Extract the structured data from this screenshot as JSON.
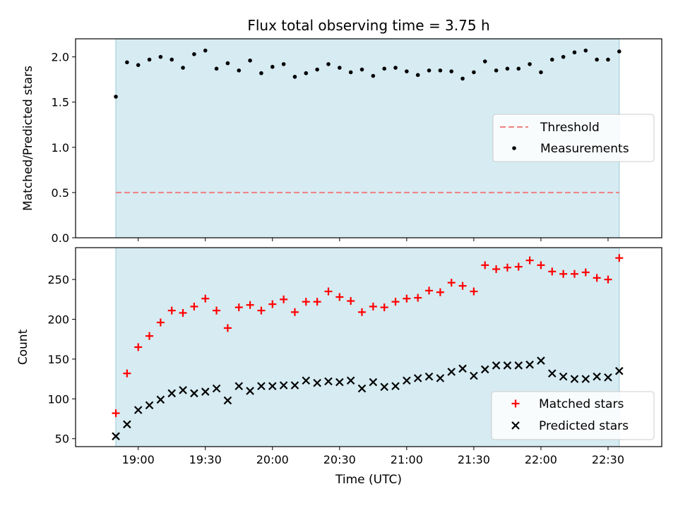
{
  "chart_data": [
    {
      "type": "scatter",
      "title": "Flux total observing time = 3.75 h",
      "xlabel": "",
      "ylabel": "Matched/Predicted stars",
      "ylim": [
        0.0,
        2.2
      ],
      "y_ticks": [
        "0.0",
        "0.5",
        "1.0",
        "1.5",
        "2.0"
      ],
      "x_ticks": [
        "19:00",
        "19:30",
        "20:00",
        "20:30",
        "21:00",
        "21:30",
        "22:00",
        "22:30"
      ],
      "shaded_span_minutes": [
        1130,
        1355
      ],
      "threshold": {
        "name": "Threshold",
        "value": 0.5,
        "color": "#f08080"
      },
      "measurements": {
        "name": "Measurements",
        "color": "#000000",
        "x_minutes": [
          1130,
          1135,
          1140,
          1145,
          1150,
          1155,
          1160,
          1165,
          1170,
          1175,
          1180,
          1185,
          1190,
          1195,
          1200,
          1205,
          1210,
          1215,
          1220,
          1225,
          1230,
          1235,
          1240,
          1245,
          1250,
          1255,
          1260,
          1265,
          1270,
          1275,
          1280,
          1285,
          1290,
          1295,
          1300,
          1305,
          1310,
          1315,
          1320,
          1325,
          1330,
          1335,
          1340,
          1345,
          1350,
          1355
        ],
        "values": [
          1.56,
          1.94,
          1.91,
          1.97,
          2.0,
          1.97,
          1.88,
          2.03,
          2.07,
          1.87,
          1.93,
          1.85,
          1.96,
          1.82,
          1.89,
          1.92,
          1.78,
          1.82,
          1.86,
          1.92,
          1.88,
          1.83,
          1.86,
          1.79,
          1.87,
          1.88,
          1.84,
          1.8,
          1.85,
          1.85,
          1.84,
          1.76,
          1.83,
          1.95,
          1.85,
          1.87,
          1.87,
          1.92,
          1.83,
          1.97,
          2.0,
          2.05,
          2.07,
          1.97,
          1.97,
          2.06
        ]
      },
      "legend": {
        "placement": "center-right",
        "entries": [
          "Threshold",
          "Measurements"
        ]
      }
    },
    {
      "type": "scatter",
      "title": "",
      "xlabel": "Time (UTC)",
      "ylabel": "Count",
      "ylim": [
        40,
        290
      ],
      "y_ticks": [
        "50",
        "100",
        "150",
        "200",
        "250"
      ],
      "x_ticks": [
        "19:00",
        "19:30",
        "20:00",
        "20:30",
        "21:00",
        "21:30",
        "22:00",
        "22:30"
      ],
      "shaded_span_minutes": [
        1130,
        1355
      ],
      "series": [
        {
          "name": "Matched stars",
          "marker": "+",
          "color": "#ff0000",
          "x_minutes": [
            1130,
            1135,
            1140,
            1145,
            1150,
            1155,
            1160,
            1165,
            1170,
            1175,
            1180,
            1185,
            1190,
            1195,
            1200,
            1205,
            1210,
            1215,
            1220,
            1225,
            1230,
            1235,
            1240,
            1245,
            1250,
            1255,
            1260,
            1265,
            1270,
            1275,
            1280,
            1285,
            1290,
            1295,
            1300,
            1305,
            1310,
            1315,
            1320,
            1325,
            1330,
            1335,
            1340,
            1345,
            1350,
            1355
          ],
          "values": [
            82,
            132,
            165,
            179,
            196,
            211,
            208,
            216,
            226,
            211,
            189,
            215,
            218,
            211,
            219,
            225,
            209,
            222,
            222,
            235,
            228,
            223,
            209,
            216,
            215,
            222,
            226,
            227,
            236,
            234,
            246,
            242,
            235,
            268,
            263,
            265,
            266,
            274,
            268,
            260,
            257,
            257,
            259,
            252,
            250,
            277
          ]
        },
        {
          "name": "Predicted stars",
          "marker": "x",
          "color": "#000000",
          "x_minutes": [
            1130,
            1135,
            1140,
            1145,
            1150,
            1155,
            1160,
            1165,
            1170,
            1175,
            1180,
            1185,
            1190,
            1195,
            1200,
            1205,
            1210,
            1215,
            1220,
            1225,
            1230,
            1235,
            1240,
            1245,
            1250,
            1255,
            1260,
            1265,
            1270,
            1275,
            1280,
            1285,
            1290,
            1295,
            1300,
            1305,
            1310,
            1315,
            1320,
            1325,
            1330,
            1335,
            1340,
            1345,
            1350,
            1355
          ],
          "values": [
            53,
            68,
            86,
            92,
            99,
            107,
            111,
            107,
            109,
            113,
            98,
            116,
            110,
            116,
            116,
            117,
            117,
            123,
            120,
            122,
            121,
            123,
            113,
            121,
            115,
            116,
            123,
            126,
            128,
            126,
            134,
            138,
            129,
            137,
            142,
            142,
            142,
            143,
            148,
            132,
            128,
            125,
            125,
            128,
            127,
            135
          ]
        }
      ],
      "legend": {
        "placement": "lower-right",
        "entries": [
          "Matched stars",
          "Predicted stars"
        ]
      }
    }
  ]
}
